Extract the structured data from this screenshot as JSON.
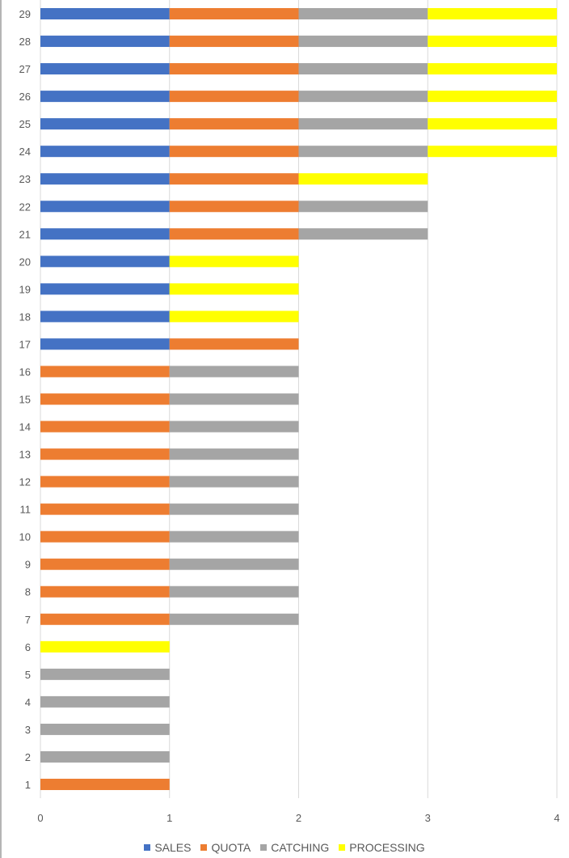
{
  "chart_data": {
    "type": "bar",
    "orientation": "horizontal",
    "stacked": true,
    "categories": [
      "1",
      "2",
      "3",
      "4",
      "5",
      "6",
      "7",
      "8",
      "9",
      "10",
      "11",
      "12",
      "13",
      "14",
      "15",
      "16",
      "17",
      "18",
      "19",
      "20",
      "21",
      "22",
      "23",
      "24",
      "25",
      "26",
      "27",
      "28",
      "29"
    ],
    "series": [
      {
        "name": "SALES",
        "color": "#4472C4",
        "values": [
          0,
          0,
          0,
          0,
          0,
          0,
          0,
          0,
          0,
          0,
          0,
          0,
          0,
          0,
          0,
          0,
          1,
          1,
          1,
          1,
          1,
          1,
          1,
          1,
          1,
          1,
          1,
          1,
          1
        ]
      },
      {
        "name": "QUOTA",
        "color": "#ED7D31",
        "values": [
          1,
          0,
          0,
          0,
          0,
          0,
          1,
          1,
          1,
          1,
          1,
          1,
          1,
          1,
          1,
          1,
          1,
          0,
          0,
          0,
          1,
          1,
          1,
          1,
          1,
          1,
          1,
          1,
          1
        ]
      },
      {
        "name": "CATCHING",
        "color": "#A5A5A5",
        "values": [
          0,
          1,
          1,
          1,
          1,
          0,
          1,
          1,
          1,
          1,
          1,
          1,
          1,
          1,
          1,
          1,
          0,
          0,
          0,
          0,
          1,
          1,
          0,
          1,
          1,
          1,
          1,
          1,
          1
        ]
      },
      {
        "name": "PROCESSING",
        "color": "#FFFF00",
        "values": [
          0,
          0,
          0,
          0,
          0,
          1,
          0,
          0,
          0,
          0,
          0,
          0,
          0,
          0,
          0,
          0,
          0,
          1,
          1,
          1,
          0,
          0,
          1,
          1,
          1,
          1,
          1,
          1,
          1
        ]
      }
    ],
    "xlim": [
      0,
      4
    ],
    "x_ticks": [
      "0",
      "1",
      "2",
      "3",
      "4"
    ],
    "grid": true,
    "legend_position": "bottom",
    "title": "",
    "xlabel": "",
    "ylabel": ""
  }
}
